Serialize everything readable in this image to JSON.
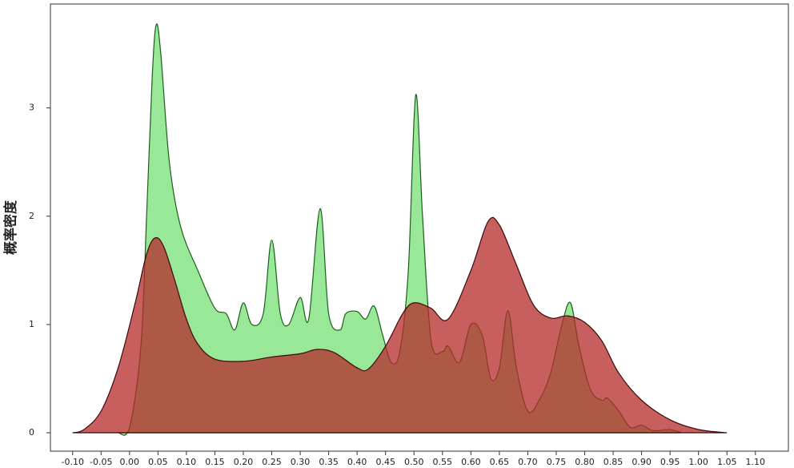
{
  "chart_data": {
    "type": "area",
    "y_label": "概率密度",
    "xlim": [
      -0.139,
      1.158
    ],
    "ylim": [
      -0.17,
      3.96
    ],
    "xticks": [
      {
        "value": -0.1,
        "label": "-0.10"
      },
      -0.05,
      {
        "value": 0,
        "label": "0.00"
      },
      0.05,
      {
        "value": 0.1,
        "label": "0.10"
      },
      0.15,
      {
        "value": 0.2,
        "label": "0.20"
      },
      0.25,
      {
        "value": 0.3,
        "label": "0.30"
      },
      0.35,
      {
        "value": 0.4,
        "label": "0.40"
      },
      0.45,
      {
        "value": 0.5,
        "label": "0.50"
      },
      0.55,
      {
        "value": 0.6,
        "label": "0.60"
      },
      0.65,
      {
        "value": 0.7,
        "label": "0.70"
      },
      0.75,
      {
        "value": 0.8,
        "label": "0.80"
      },
      0.85,
      {
        "value": 0.9,
        "label": "0.90"
      },
      0.95,
      {
        "value": 1,
        "label": "1.00"
      },
      1.05,
      {
        "value": 1.1,
        "label": "1.10"
      }
    ],
    "yticks": [
      0,
      1,
      2,
      3
    ],
    "series": [
      {
        "color": "#98e898",
        "x": [
          -0.02,
          0,
          0.02,
          0.03,
          0.04,
          0.047,
          0.055,
          0.07,
          0.09,
          0.12,
          0.15,
          0.17,
          0.185,
          0.2,
          0.215,
          0.235,
          0.25,
          0.265,
          0.28,
          0.3,
          0.315,
          0.335,
          0.35,
          0.37,
          0.38,
          0.4,
          0.415,
          0.43,
          0.445,
          0.46,
          0.475,
          0.49,
          0.503,
          0.515,
          0.53,
          0.55,
          0.56,
          0.58,
          0.6,
          0.62,
          0.635,
          0.65,
          0.665,
          0.68,
          0.7,
          0.72,
          0.74,
          0.76,
          0.775,
          0.79,
          0.81,
          0.83,
          0.84,
          0.86,
          0.88,
          0.9,
          0.92,
          0.95,
          0.97
        ],
        "values": [
          0,
          0.05,
          0.8,
          2.0,
          3.3,
          3.77,
          3.5,
          2.5,
          1.9,
          1.5,
          1.15,
          1.1,
          0.95,
          1.2,
          1.0,
          1.1,
          1.78,
          1.1,
          1.0,
          1.25,
          1.05,
          2.07,
          1.1,
          0.95,
          1.1,
          1.12,
          1.05,
          1.17,
          0.9,
          0.65,
          0.75,
          1.5,
          3.12,
          2.0,
          0.85,
          0.75,
          0.8,
          0.65,
          1.0,
          0.9,
          0.5,
          0.6,
          1.13,
          0.6,
          0.2,
          0.3,
          0.55,
          1.0,
          1.2,
          0.8,
          0.4,
          0.3,
          0.32,
          0.2,
          0.05,
          0.07,
          0.02,
          0.03,
          0
        ]
      },
      {
        "color": "#b52a2a",
        "x": [
          -0.1,
          -0.08,
          -0.05,
          -0.02,
          0.01,
          0.03,
          0.045,
          0.06,
          0.08,
          0.1,
          0.12,
          0.15,
          0.2,
          0.25,
          0.3,
          0.33,
          0.36,
          0.4,
          0.42,
          0.45,
          0.48,
          0.5,
          0.53,
          0.56,
          0.6,
          0.63,
          0.65,
          0.68,
          0.71,
          0.74,
          0.77,
          0.8,
          0.83,
          0.86,
          0.9,
          0.95,
          1.0,
          1.05
        ],
        "values": [
          0,
          0.03,
          0.2,
          0.6,
          1.2,
          1.65,
          1.8,
          1.72,
          1.4,
          1.05,
          0.82,
          0.68,
          0.66,
          0.7,
          0.73,
          0.77,
          0.74,
          0.6,
          0.59,
          0.8,
          1.1,
          1.2,
          1.15,
          1.05,
          1.5,
          1.95,
          1.92,
          1.55,
          1.18,
          1.06,
          1.08,
          1.02,
          0.85,
          0.55,
          0.3,
          0.12,
          0.03,
          0
        ]
      }
    ]
  }
}
